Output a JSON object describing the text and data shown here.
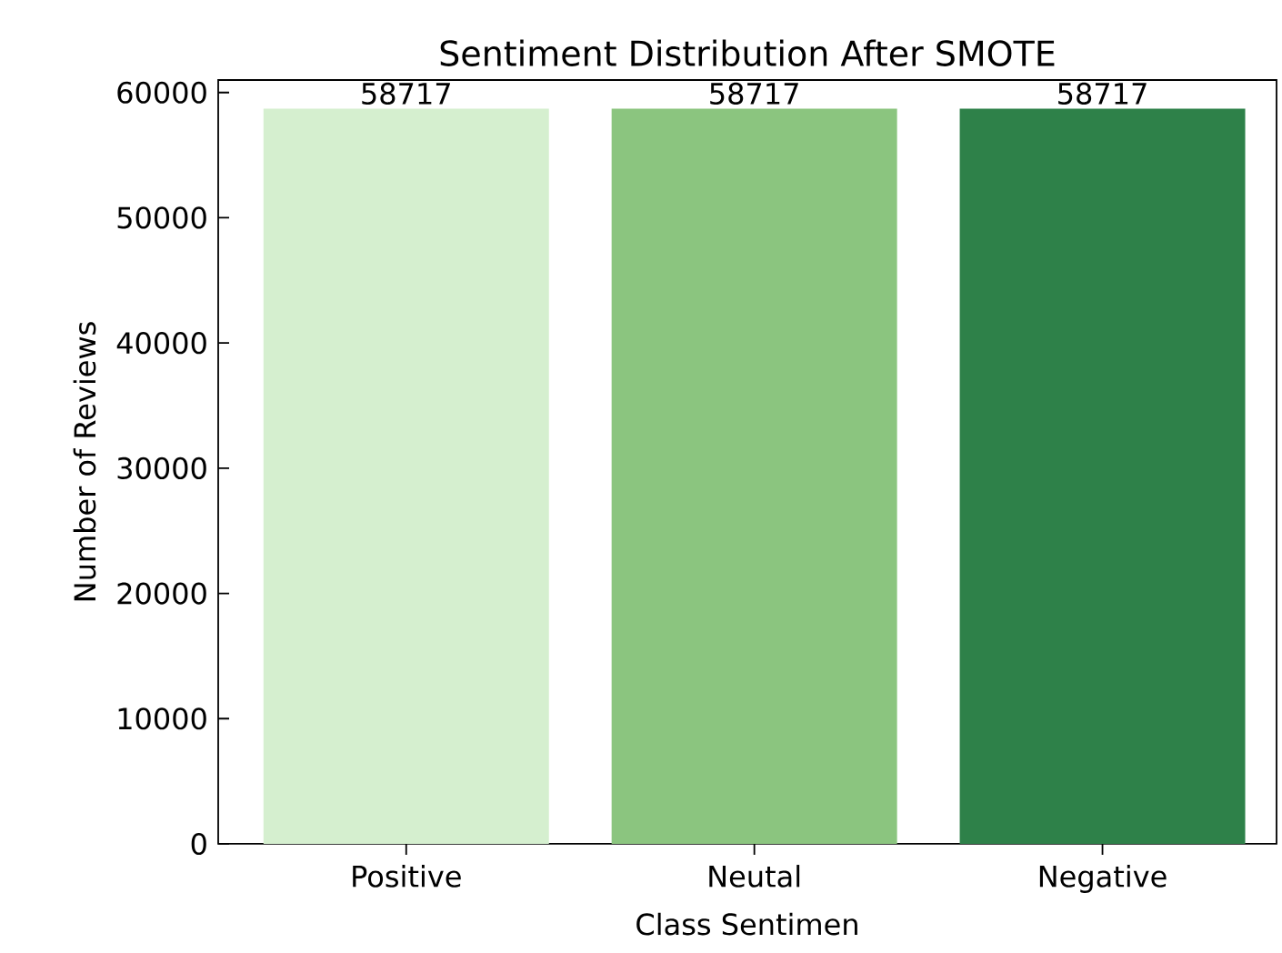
{
  "chart_data": {
    "type": "bar",
    "title": "Sentiment Distribution After SMOTE",
    "xlabel": "Class Sentimen",
    "ylabel": "Number of Reviews",
    "categories": [
      "Positive",
      "Neutal",
      "Negative"
    ],
    "values": [
      58717,
      58717,
      58717
    ],
    "colors": [
      "#d5efcf",
      "#8bc57f",
      "#2e8149"
    ],
    "ylim": [
      0,
      61000
    ],
    "yticks": [
      0,
      10000,
      20000,
      30000,
      40000,
      50000,
      60000
    ],
    "data_labels": true,
    "grid": false
  }
}
